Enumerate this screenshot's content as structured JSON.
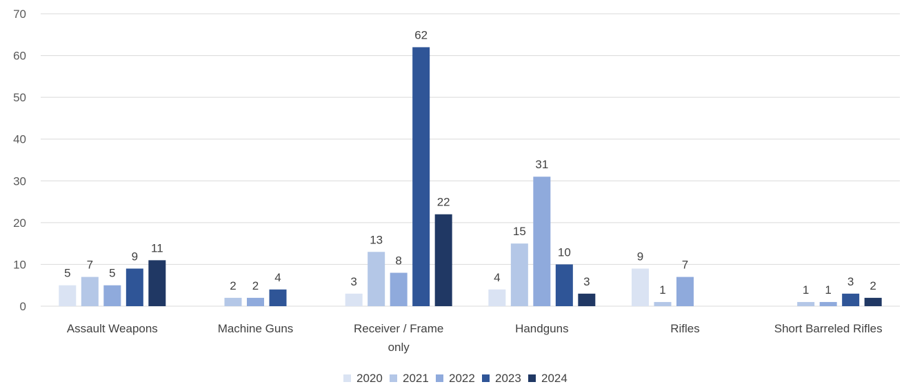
{
  "chart_data": {
    "type": "bar",
    "title": "",
    "xlabel": "",
    "ylabel": "",
    "ylim": [
      0,
      70
    ],
    "yticks": [
      0,
      10,
      20,
      30,
      40,
      50,
      60,
      70
    ],
    "grid": true,
    "legend_position": "bottom",
    "categories": [
      "Assault Weapons",
      "Machine Guns",
      "Receiver / Frame only",
      "Handguns",
      "Rifles",
      "Short Barreled Rifles"
    ],
    "category_label_lines": [
      [
        "Assault Weapons"
      ],
      [
        "Machine Guns"
      ],
      [
        "Receiver / Frame",
        "only"
      ],
      [
        "Handguns"
      ],
      [
        "Rifles"
      ],
      [
        "Short Barreled Rifles"
      ]
    ],
    "series": [
      {
        "name": "2020",
        "color": "#dae3f3",
        "values": [
          5,
          null,
          3,
          4,
          9,
          null
        ]
      },
      {
        "name": "2021",
        "color": "#b4c7e7",
        "values": [
          7,
          2,
          13,
          15,
          1,
          1
        ]
      },
      {
        "name": "2022",
        "color": "#8faadc",
        "values": [
          5,
          2,
          8,
          31,
          7,
          1
        ]
      },
      {
        "name": "2023",
        "color": "#2f5597",
        "values": [
          9,
          4,
          62,
          10,
          null,
          3
        ]
      },
      {
        "name": "2024",
        "color": "#203864",
        "values": [
          11,
          null,
          22,
          3,
          null,
          2
        ]
      }
    ]
  }
}
